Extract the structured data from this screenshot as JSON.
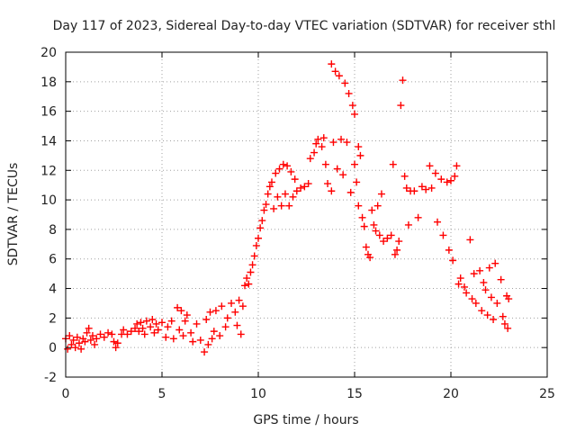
{
  "chart_data": {
    "type": "scatter",
    "title": "Day 117 of 2023, Sidereal Day-to-day VTEC variation (SDTVAR) for receiver sthl",
    "xlabel": "GPS time / hours",
    "ylabel": "SDTVAR / TECUs",
    "xlim": [
      0,
      25
    ],
    "ylim": [
      -2,
      20
    ],
    "xticks": [
      0,
      5,
      10,
      15,
      20,
      25
    ],
    "yticks": [
      -2,
      0,
      2,
      4,
      6,
      8,
      10,
      12,
      14,
      16,
      18,
      20
    ],
    "grid": true,
    "marker": "+",
    "color": "#ff0000",
    "series": [
      {
        "name": "SDTVAR",
        "points": [
          [
            0.0,
            0.6
          ],
          [
            0.1,
            -0.1
          ],
          [
            0.2,
            0.8
          ],
          [
            0.3,
            0.2
          ],
          [
            0.4,
            0.5
          ],
          [
            0.5,
            0.0
          ],
          [
            0.6,
            0.7
          ],
          [
            0.7,
            0.3
          ],
          [
            0.8,
            -0.1
          ],
          [
            0.9,
            0.6
          ],
          [
            1.0,
            0.4
          ],
          [
            1.1,
            1.0
          ],
          [
            1.2,
            1.3
          ],
          [
            1.3,
            0.5
          ],
          [
            1.4,
            0.8
          ],
          [
            1.5,
            0.2
          ],
          [
            1.6,
            0.6
          ],
          [
            1.8,
            0.9
          ],
          [
            2.0,
            0.7
          ],
          [
            2.2,
            1.0
          ],
          [
            2.4,
            0.9
          ],
          [
            2.5,
            0.4
          ],
          [
            2.6,
            0.0
          ],
          [
            2.7,
            0.3
          ],
          [
            2.9,
            0.9
          ],
          [
            3.0,
            1.2
          ],
          [
            3.2,
            0.9
          ],
          [
            3.4,
            1.1
          ],
          [
            3.6,
            1.3
          ],
          [
            3.7,
            1.6
          ],
          [
            3.8,
            1.1
          ],
          [
            3.9,
            1.7
          ],
          [
            4.0,
            1.3
          ],
          [
            4.1,
            0.9
          ],
          [
            4.2,
            1.8
          ],
          [
            4.4,
            1.4
          ],
          [
            4.5,
            1.9
          ],
          [
            4.6,
            1.0
          ],
          [
            4.7,
            1.6
          ],
          [
            4.8,
            1.2
          ],
          [
            5.0,
            1.7
          ],
          [
            5.2,
            0.7
          ],
          [
            5.3,
            1.4
          ],
          [
            5.5,
            1.8
          ],
          [
            5.6,
            0.6
          ],
          [
            5.8,
            2.7
          ],
          [
            5.9,
            1.2
          ],
          [
            6.0,
            2.5
          ],
          [
            6.1,
            0.8
          ],
          [
            6.2,
            1.8
          ],
          [
            6.3,
            2.2
          ],
          [
            6.5,
            1.0
          ],
          [
            6.6,
            0.4
          ],
          [
            6.8,
            1.6
          ],
          [
            7.0,
            0.5
          ],
          [
            7.2,
            -0.3
          ],
          [
            7.3,
            1.9
          ],
          [
            7.4,
            0.2
          ],
          [
            7.5,
            2.4
          ],
          [
            7.6,
            0.6
          ],
          [
            7.7,
            1.1
          ],
          [
            7.8,
            2.5
          ],
          [
            8.0,
            0.8
          ],
          [
            8.1,
            2.8
          ],
          [
            8.3,
            1.4
          ],
          [
            8.4,
            2.0
          ],
          [
            8.6,
            3.0
          ],
          [
            8.8,
            2.4
          ],
          [
            8.9,
            1.5
          ],
          [
            9.0,
            3.2
          ],
          [
            9.1,
            0.9
          ],
          [
            9.2,
            2.8
          ],
          [
            9.3,
            4.2
          ],
          [
            9.4,
            4.7
          ],
          [
            9.5,
            4.3
          ],
          [
            9.6,
            5.1
          ],
          [
            9.7,
            5.6
          ],
          [
            9.8,
            6.2
          ],
          [
            9.9,
            6.9
          ],
          [
            10.0,
            7.4
          ],
          [
            10.1,
            8.1
          ],
          [
            10.2,
            8.6
          ],
          [
            10.3,
            9.3
          ],
          [
            10.4,
            9.7
          ],
          [
            10.5,
            10.4
          ],
          [
            10.6,
            10.9
          ],
          [
            10.7,
            11.2
          ],
          [
            10.8,
            9.4
          ],
          [
            10.9,
            11.8
          ],
          [
            11.0,
            10.2
          ],
          [
            11.1,
            12.1
          ],
          [
            11.2,
            9.6
          ],
          [
            11.3,
            12.4
          ],
          [
            11.4,
            10.4
          ],
          [
            11.5,
            12.3
          ],
          [
            11.6,
            9.6
          ],
          [
            11.7,
            11.9
          ],
          [
            11.8,
            10.2
          ],
          [
            11.9,
            11.4
          ],
          [
            12.0,
            10.6
          ],
          [
            12.2,
            10.8
          ],
          [
            12.4,
            10.9
          ],
          [
            12.6,
            11.1
          ],
          [
            12.7,
            12.8
          ],
          [
            12.9,
            13.2
          ],
          [
            13.0,
            13.8
          ],
          [
            13.1,
            14.1
          ],
          [
            13.3,
            13.6
          ],
          [
            13.4,
            14.2
          ],
          [
            13.5,
            12.4
          ],
          [
            13.6,
            11.1
          ],
          [
            13.8,
            10.6
          ],
          [
            13.8,
            19.2
          ],
          [
            13.9,
            13.9
          ],
          [
            14.0,
            18.7
          ],
          [
            14.1,
            12.1
          ],
          [
            14.2,
            18.4
          ],
          [
            14.3,
            14.1
          ],
          [
            14.4,
            11.7
          ],
          [
            14.5,
            17.9
          ],
          [
            14.6,
            13.9
          ],
          [
            14.7,
            17.2
          ],
          [
            14.8,
            10.5
          ],
          [
            14.9,
            16.4
          ],
          [
            15.0,
            15.8
          ],
          [
            15.0,
            12.4
          ],
          [
            15.1,
            11.2
          ],
          [
            15.2,
            13.6
          ],
          [
            15.2,
            9.6
          ],
          [
            15.3,
            13.0
          ],
          [
            15.4,
            8.8
          ],
          [
            15.5,
            8.2
          ],
          [
            15.6,
            6.8
          ],
          [
            15.7,
            6.3
          ],
          [
            15.8,
            6.1
          ],
          [
            15.9,
            9.3
          ],
          [
            16.0,
            8.3
          ],
          [
            16.1,
            7.9
          ],
          [
            16.2,
            9.6
          ],
          [
            16.3,
            7.6
          ],
          [
            16.4,
            10.4
          ],
          [
            16.5,
            7.2
          ],
          [
            16.7,
            7.4
          ],
          [
            16.9,
            7.6
          ],
          [
            17.0,
            12.4
          ],
          [
            17.1,
            6.3
          ],
          [
            17.2,
            6.6
          ],
          [
            17.3,
            7.2
          ],
          [
            17.4,
            16.4
          ],
          [
            17.5,
            18.1
          ],
          [
            17.6,
            11.6
          ],
          [
            17.7,
            10.8
          ],
          [
            17.8,
            8.3
          ],
          [
            17.9,
            10.6
          ],
          [
            18.1,
            10.6
          ],
          [
            18.3,
            8.8
          ],
          [
            18.5,
            10.9
          ],
          [
            18.7,
            10.7
          ],
          [
            18.9,
            12.3
          ],
          [
            19.0,
            10.8
          ],
          [
            19.2,
            11.8
          ],
          [
            19.3,
            8.5
          ],
          [
            19.5,
            11.4
          ],
          [
            19.6,
            7.6
          ],
          [
            19.8,
            11.2
          ],
          [
            19.9,
            6.6
          ],
          [
            20.0,
            11.3
          ],
          [
            20.1,
            5.9
          ],
          [
            20.2,
            11.6
          ],
          [
            20.3,
            12.3
          ],
          [
            20.4,
            4.3
          ],
          [
            20.5,
            4.7
          ],
          [
            20.7,
            4.1
          ],
          [
            20.8,
            3.7
          ],
          [
            21.0,
            7.3
          ],
          [
            21.1,
            3.3
          ],
          [
            21.2,
            5.0
          ],
          [
            21.3,
            3.0
          ],
          [
            21.5,
            5.2
          ],
          [
            21.6,
            2.5
          ],
          [
            21.7,
            4.4
          ],
          [
            21.8,
            3.9
          ],
          [
            21.9,
            2.2
          ],
          [
            22.0,
            5.4
          ],
          [
            22.1,
            3.4
          ],
          [
            22.2,
            1.9
          ],
          [
            22.3,
            5.7
          ],
          [
            22.4,
            3.0
          ],
          [
            22.6,
            4.6
          ],
          [
            22.7,
            2.1
          ],
          [
            22.8,
            1.6
          ],
          [
            22.9,
            3.5
          ],
          [
            23.0,
            3.3
          ],
          [
            22.95,
            1.3
          ]
        ]
      }
    ]
  }
}
